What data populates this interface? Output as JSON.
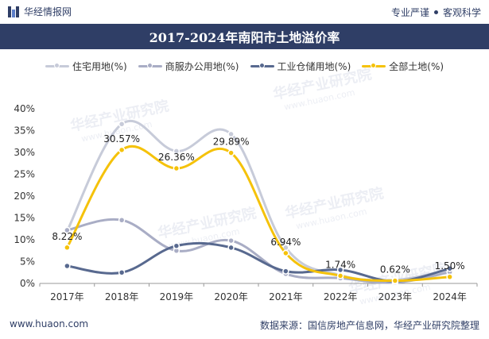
{
  "header": {
    "brand": "华经情报网",
    "tag_left": "专业严谨",
    "tag_right": "客观科学"
  },
  "chart_title": "2017-2024年南阳市土地溢价率",
  "watermark": {
    "name": "华经产业研究院",
    "url": "www.huaon.com"
  },
  "footer": {
    "website": "www.huaon.com",
    "source": "数据来源：国信房地产信息网，华经产业研究院整理"
  },
  "colors": {
    "header_bg": "#2f3e66",
    "residential": "#c7cbd9",
    "commercial": "#a9adc5",
    "industrial": "#58698f",
    "all_land": "#f5c20a"
  },
  "chart_data": {
    "type": "line",
    "title": "2017-2024年南阳市土地溢价率",
    "categories": [
      "2017年",
      "2018年",
      "2019年",
      "2020年",
      "2021年",
      "2022年",
      "2023年",
      "2024年"
    ],
    "y_ticks": [
      "0%",
      "5%",
      "10%",
      "15%",
      "20%",
      "25%",
      "30%",
      "35%",
      "40%"
    ],
    "ylim": [
      0,
      40
    ],
    "series": [
      {
        "name": "住宅用地(%)",
        "color": "#c7cbd9",
        "values": [
          12.0,
          36.5,
          30.3,
          34.2,
          8.2,
          1.9,
          0.8,
          3.2
        ],
        "labels": null
      },
      {
        "name": "商服办公用地(%)",
        "color": "#a9adc5",
        "values": [
          12.2,
          14.5,
          7.5,
          9.8,
          2.2,
          1.2,
          0.2,
          2.6
        ],
        "labels": null
      },
      {
        "name": "工业仓储用地(%)",
        "color": "#58698f",
        "values": [
          4.0,
          2.5,
          8.6,
          8.2,
          2.8,
          3.1,
          0.5,
          3.4
        ],
        "labels": null
      },
      {
        "name": "全部土地(%)",
        "color": "#f5c20a",
        "values": [
          8.22,
          30.57,
          26.36,
          29.89,
          6.94,
          1.74,
          0.62,
          1.5
        ],
        "labels": [
          "8.22%",
          "30.57%",
          "26.36%",
          "29.89%",
          "6.94%",
          "1.74%",
          "0.62%",
          "1.50%"
        ]
      }
    ],
    "legend_position": "top"
  }
}
